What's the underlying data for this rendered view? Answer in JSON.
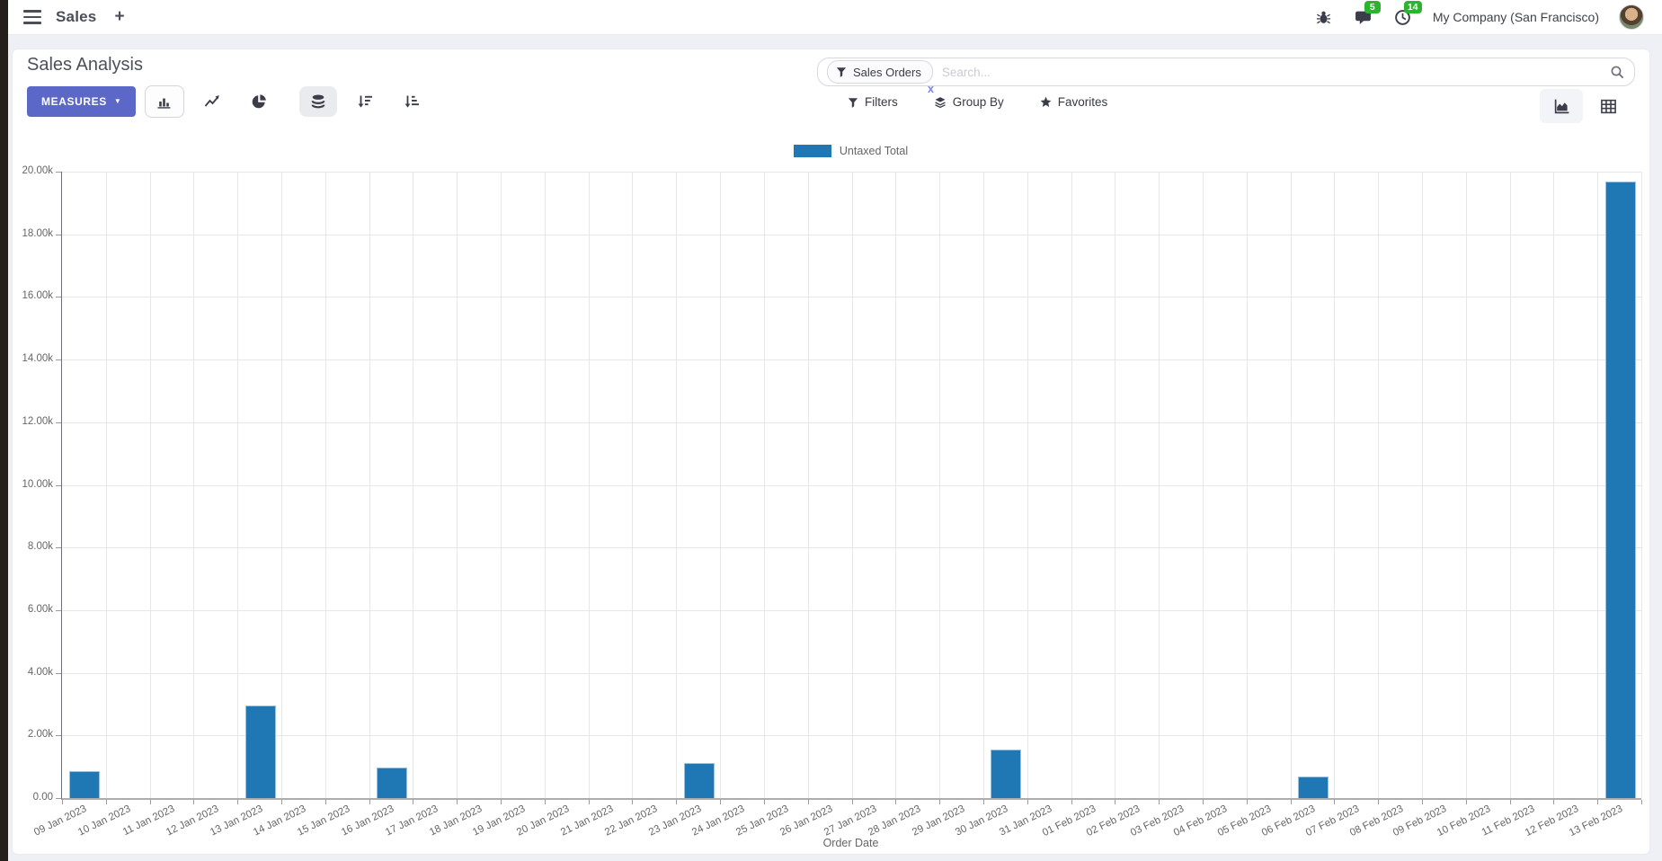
{
  "nav": {
    "app_menu_label": "Sales",
    "new_tab_label": "+",
    "messages_count": "5",
    "activities_count": "14",
    "company_name": "My Company (San Francisco)"
  },
  "control_panel": {
    "title": "Sales Analysis",
    "measures_button": "MEASURES",
    "measures_caret": "▼"
  },
  "search": {
    "facet": "Sales Orders",
    "facet_remove": "x",
    "placeholder": "Search..."
  },
  "filter_menus": {
    "filters": "Filters",
    "group_by": "Group By",
    "favorites": "Favorites"
  },
  "icons": {
    "menu": "hamburger-icon",
    "bug": "bug-icon",
    "messages": "speech-bubble-icon",
    "activities": "clock-icon",
    "search": "magnifier-icon",
    "filter": "funnel-icon",
    "group_by": "layers-icon",
    "favorites": "star-icon",
    "bar_chart": "bar-chart-icon",
    "line_chart": "line-chart-icon",
    "pie_chart": "pie-chart-icon",
    "stacked": "database-icon",
    "sort_desc": "sort-descending-icon",
    "sort_asc": "sort-ascending-icon",
    "graph_view": "area-chart-icon",
    "pivot_view": "pivot-table-icon"
  },
  "colors": {
    "accent": "#5c68c8",
    "bar": "#1f77b4",
    "badge": "#2bb42e",
    "page_bg": "#eff0f6"
  },
  "chart_data": {
    "type": "bar",
    "title": "",
    "xlabel": "Order Date",
    "ylabel": "",
    "legend_position": "top",
    "grid": true,
    "ylim": [
      0,
      20000
    ],
    "ytick_step": 2000,
    "ytick_labels": [
      "0.00",
      "2.00k",
      "4.00k",
      "6.00k",
      "8.00k",
      "10.00k",
      "12.00k",
      "14.00k",
      "16.00k",
      "18.00k",
      "20.00k"
    ],
    "categories": [
      "09 Jan 2023",
      "10 Jan 2023",
      "11 Jan 2023",
      "12 Jan 2023",
      "13 Jan 2023",
      "14 Jan 2023",
      "15 Jan 2023",
      "16 Jan 2023",
      "17 Jan 2023",
      "18 Jan 2023",
      "19 Jan 2023",
      "20 Jan 2023",
      "21 Jan 2023",
      "22 Jan 2023",
      "23 Jan 2023",
      "24 Jan 2023",
      "25 Jan 2023",
      "26 Jan 2023",
      "27 Jan 2023",
      "28 Jan 2023",
      "29 Jan 2023",
      "30 Jan 2023",
      "31 Jan 2023",
      "01 Feb 2023",
      "02 Feb 2023",
      "03 Feb 2023",
      "04 Feb 2023",
      "05 Feb 2023",
      "06 Feb 2023",
      "07 Feb 2023",
      "08 Feb 2023",
      "09 Feb 2023",
      "10 Feb 2023",
      "11 Feb 2023",
      "12 Feb 2023",
      "13 Feb 2023"
    ],
    "series": [
      {
        "name": "Untaxed Total",
        "color": "#1f77b4",
        "values": [
          820,
          0,
          0,
          0,
          2920,
          0,
          0,
          960,
          0,
          0,
          0,
          0,
          0,
          0,
          1080,
          0,
          0,
          0,
          0,
          0,
          0,
          1530,
          0,
          0,
          0,
          0,
          0,
          0,
          650,
          0,
          0,
          0,
          0,
          0,
          0,
          19660
        ]
      }
    ]
  }
}
